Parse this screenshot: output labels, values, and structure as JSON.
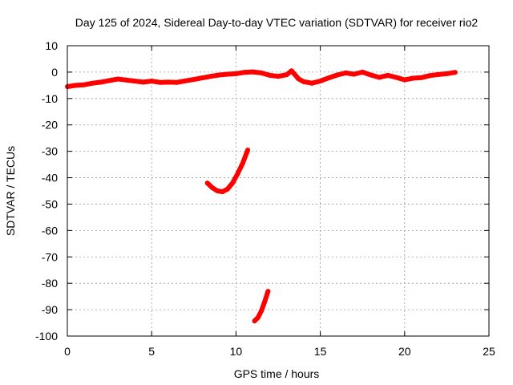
{
  "chart_data": {
    "type": "line",
    "title": "Day 125 of 2024, Sidereal Day-to-day VTEC variation (SDTVAR) for receiver rio2",
    "xlabel": "GPS time / hours",
    "ylabel": "SDTVAR / TECUs",
    "xlim": [
      0,
      25
    ],
    "ylim": [
      -100,
      10
    ],
    "x_ticks": [
      0,
      5,
      10,
      15,
      20,
      25
    ],
    "y_ticks": [
      10,
      0,
      -10,
      -20,
      -30,
      -40,
      -50,
      -60,
      -70,
      -80,
      -90,
      -100
    ],
    "grid": true,
    "legend": "none",
    "colors": {
      "series": "#ff0000",
      "grid": "#999999",
      "axis": "#000000"
    },
    "series": [
      {
        "name": "main",
        "points": [
          [
            0.0,
            -5.5
          ],
          [
            0.5,
            -5.0
          ],
          [
            1.0,
            -4.8
          ],
          [
            1.5,
            -4.2
          ],
          [
            2.0,
            -3.8
          ],
          [
            2.5,
            -3.2
          ],
          [
            3.0,
            -2.6
          ],
          [
            3.5,
            -3.0
          ],
          [
            4.0,
            -3.4
          ],
          [
            4.5,
            -3.8
          ],
          [
            5.0,
            -3.4
          ],
          [
            5.5,
            -3.9
          ],
          [
            6.0,
            -3.8
          ],
          [
            6.5,
            -3.9
          ],
          [
            7.0,
            -3.3
          ],
          [
            7.5,
            -2.8
          ],
          [
            8.0,
            -2.2
          ],
          [
            8.5,
            -1.6
          ],
          [
            9.0,
            -1.1
          ],
          [
            9.5,
            -0.8
          ],
          [
            10.0,
            -0.6
          ],
          [
            10.5,
            -0.1
          ],
          [
            11.0,
            0.1
          ],
          [
            11.5,
            -0.3
          ],
          [
            12.0,
            -1.2
          ],
          [
            12.5,
            -1.6
          ],
          [
            13.0,
            -1.0
          ],
          [
            13.3,
            0.5
          ],
          [
            13.7,
            -2.5
          ],
          [
            14.0,
            -3.6
          ],
          [
            14.5,
            -4.2
          ],
          [
            15.0,
            -3.4
          ],
          [
            15.5,
            -2.2
          ],
          [
            16.0,
            -1.1
          ],
          [
            16.5,
            -0.3
          ],
          [
            17.0,
            -0.8
          ],
          [
            17.5,
            0.0
          ],
          [
            18.0,
            -1.1
          ],
          [
            18.5,
            -2.0
          ],
          [
            19.0,
            -1.2
          ],
          [
            19.5,
            -2.0
          ],
          [
            20.0,
            -2.9
          ],
          [
            20.5,
            -2.3
          ],
          [
            21.0,
            -2.1
          ],
          [
            21.5,
            -1.3
          ],
          [
            22.0,
            -0.9
          ],
          [
            22.5,
            -0.6
          ],
          [
            23.0,
            -0.1
          ]
        ]
      },
      {
        "name": "arc-1",
        "points": [
          [
            8.3,
            -42.0
          ],
          [
            8.6,
            -43.8
          ],
          [
            8.9,
            -45.0
          ],
          [
            9.2,
            -45.3
          ],
          [
            9.5,
            -44.3
          ],
          [
            9.8,
            -42.0
          ],
          [
            10.1,
            -38.5
          ],
          [
            10.4,
            -34.5
          ],
          [
            10.7,
            -29.5
          ]
        ]
      },
      {
        "name": "arc-2",
        "points": [
          [
            11.1,
            -94.3
          ],
          [
            11.3,
            -93.0
          ],
          [
            11.5,
            -90.5
          ],
          [
            11.7,
            -87.0
          ],
          [
            11.9,
            -83.0
          ]
        ]
      }
    ]
  }
}
